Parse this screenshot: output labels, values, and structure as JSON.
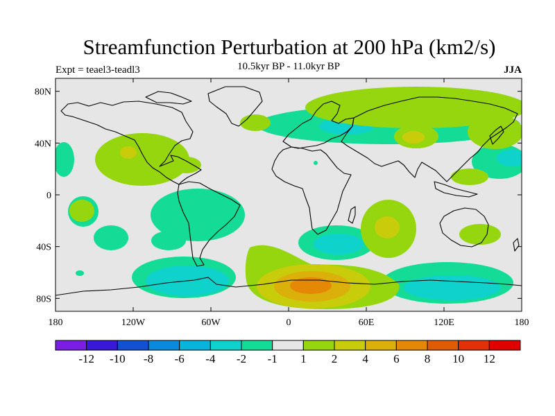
{
  "header": {
    "title": "Streamfunction Perturbation at 200 hPa (km2/s)",
    "expt": "Expt = teael3-teadl3",
    "period": "10.5kyr BP - 11.0kyr BP",
    "season": "JJA"
  },
  "axes": {
    "y_ticks": [
      {
        "lat": 80,
        "label": "80N"
      },
      {
        "lat": 40,
        "label": "40N"
      },
      {
        "lat": 0,
        "label": "0"
      },
      {
        "lat": -40,
        "label": "40S"
      },
      {
        "lat": -80,
        "label": "80S"
      }
    ],
    "x_ticks": [
      {
        "lon": -180,
        "label": "180"
      },
      {
        "lon": -120,
        "label": "120W"
      },
      {
        "lon": -60,
        "label": "60W"
      },
      {
        "lon": 0,
        "label": "0"
      },
      {
        "lon": 60,
        "label": "60E"
      },
      {
        "lon": 120,
        "label": "120E"
      },
      {
        "lon": 180,
        "label": "180"
      }
    ]
  },
  "colorbar": {
    "colors": [
      "#7a1ee6",
      "#3a18d8",
      "#1450d2",
      "#0a8adc",
      "#08b4dc",
      "#10d2cc",
      "#14dc96",
      "#e6e6e6",
      "#96d60e",
      "#c8cc0a",
      "#dcb00a",
      "#e48806",
      "#e05c04",
      "#e23008",
      "#e00000"
    ],
    "labels": [
      "-12",
      "-10",
      "-8",
      "-6",
      "-4",
      "-2",
      "-1",
      "1",
      "2",
      "4",
      "6",
      "8",
      "10",
      "12"
    ]
  },
  "colors": {
    "neutral": "#e6e6e6",
    "neg1": "#14dc96",
    "neg2": "#10d2cc",
    "pos1": "#96d60e",
    "pos2": "#c8cc0a",
    "pos3": "#dcb00a",
    "pos4": "#e48806"
  }
}
